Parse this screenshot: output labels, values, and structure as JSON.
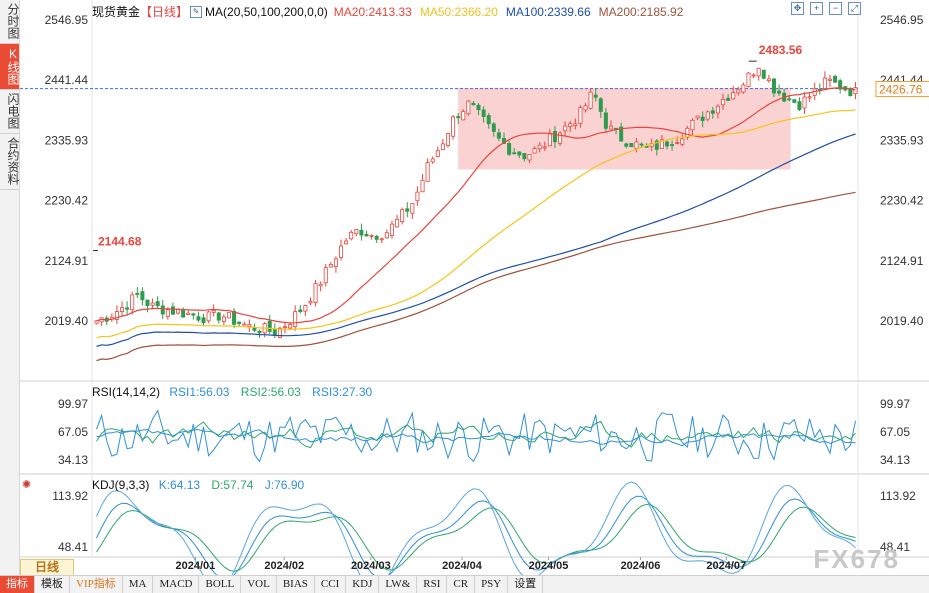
{
  "instrument": "现货黄金",
  "period_tag": "【日线】",
  "ma_header": {
    "label": "MA(20,50,100,200,0,0)",
    "ma20": "MA20:2413.33",
    "ma50": "MA50:2366.20",
    "ma100": "MA100:2339.66",
    "ma200": "MA200:2185.92"
  },
  "left_tabs": [
    "分时图",
    "K线图",
    "闪电图",
    "合约资料"
  ],
  "price_axis": {
    "left_ticks": [
      "2546.95",
      "2441.44",
      "2335.93",
      "2230.42",
      "2124.91",
      "2019.40"
    ],
    "right_ticks": [
      "2546.95",
      "2441.44",
      "2335.93",
      "2230.42",
      "2124.91",
      "2019.40"
    ],
    "current_price": "2426.76",
    "high_label": "2483.56",
    "low_label": "2144.68"
  },
  "rsi_header": {
    "label": "RSI(14,14,2)",
    "rsi1": "RSI1:56.03",
    "rsi2": "RSI2:56.03",
    "rsi3": "RSI3:27.30",
    "ticks": [
      "99.97",
      "67.05",
      "34.13"
    ]
  },
  "kdj_header": {
    "label": "KDJ(9,3,3)",
    "k": "K:64.13",
    "d": "D:57.74",
    "j": "J:76.90",
    "ticks": [
      "113.92",
      "48.41"
    ]
  },
  "date_axis": [
    "2024/01",
    "2024/02",
    "2024/03",
    "2024/04",
    "2024/05",
    "2024/06",
    "2024/07"
  ],
  "period_box": "日线",
  "bottom_tabs": [
    "指标",
    "模板",
    "VIP指标",
    "MA",
    "MACD",
    "BOLL",
    "VOL",
    "BIAS",
    "CCI",
    "KDJ",
    "LW&",
    "RSI",
    "CR",
    "PSY",
    "设置"
  ],
  "watermark": "FX678",
  "colors": {
    "up": "#e8453c",
    "down": "#2e9b4e",
    "ma20": "#e8453c",
    "ma50": "#f5c518",
    "ma100": "#1f4fa8",
    "ma200": "#a0523c",
    "zone": "#f9caca",
    "current_line": "#3a6fd8"
  },
  "chart_data": {
    "type": "candlestick",
    "title": "现货黄金 日线",
    "ylim": [
      2000,
      2555
    ],
    "x_range": [
      "2023-12-13",
      "2024-07-30"
    ],
    "ma_last": {
      "MA20": 2413.33,
      "MA50": 2366.2,
      "MA100": 2339.66,
      "MA200": 2185.92
    },
    "current_price": 2426.76,
    "marked_high": 2483.56,
    "marked_low": 2144.68,
    "consolidation_zone": {
      "from": "2024-04-12",
      "to": "2024-07-30",
      "low": 2285,
      "high": 2428
    },
    "close_trend": [
      2020,
      2030,
      2045,
      2065,
      2045,
      2040,
      2035,
      2030,
      2025,
      2030,
      2020,
      2010,
      2005,
      2000,
      2020,
      2045,
      2080,
      2120,
      2160,
      2180,
      2170,
      2175,
      2200,
      2230,
      2290,
      2330,
      2380,
      2400,
      2370,
      2340,
      2320,
      2310,
      2320,
      2340,
      2360,
      2380,
      2420,
      2360,
      2340,
      2330,
      2320,
      2330,
      2340,
      2360,
      2380,
      2400,
      2420,
      2440,
      2470,
      2430,
      2410,
      2400,
      2420,
      2440,
      2430,
      2420
    ],
    "rsi_ticks": [
      99.97,
      67.05,
      34.13
    ],
    "kdj_ticks": [
      113.92,
      48.41
    ]
  }
}
